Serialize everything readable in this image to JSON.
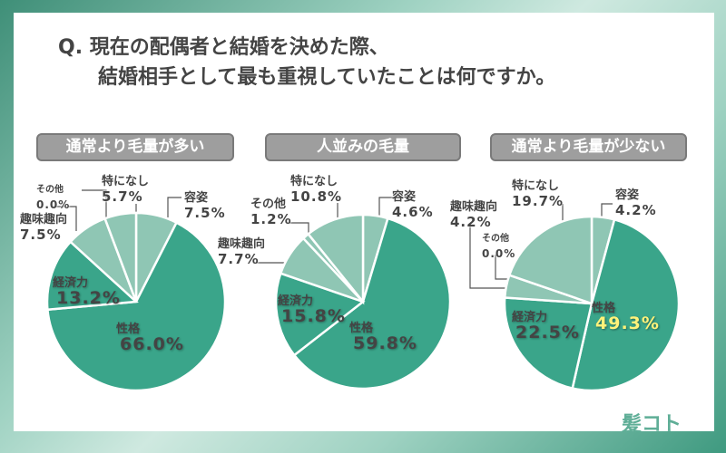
{
  "question": {
    "line1": "Q. 現在の配偶者と結婚を決めた際、",
    "line2": "結婚相手として最も重視していたことは何ですか。"
  },
  "logo": "髪コト",
  "colors": {
    "dark": "#3aa58a",
    "light": "#8fc6b4",
    "highlight": "#fff27a"
  },
  "chart_data": [
    {
      "type": "pie",
      "title": "通常より毛量が多い",
      "labels": [
        "容姿",
        "性格",
        "経済力",
        "趣味趣向",
        "その他",
        "特になし"
      ],
      "values": [
        7.5,
        66.0,
        13.2,
        7.5,
        0.0,
        5.7
      ],
      "display": [
        "7.5%",
        "66.0%",
        "13.2%",
        "7.5%",
        "0.0%",
        "5.7%"
      ]
    },
    {
      "type": "pie",
      "title": "人並みの毛量",
      "labels": [
        "容姿",
        "性格",
        "経済力",
        "趣味趣向",
        "その他",
        "特になし"
      ],
      "values": [
        4.6,
        59.8,
        15.8,
        7.7,
        1.2,
        10.8
      ],
      "display": [
        "4.6%",
        "59.8%",
        "15.8%",
        "7.7%",
        "1.2%",
        "10.8%"
      ]
    },
    {
      "type": "pie",
      "title": "通常より毛量が少ない",
      "labels": [
        "容姿",
        "性格",
        "経済力",
        "趣味趣向",
        "その他",
        "特になし"
      ],
      "values": [
        4.2,
        49.3,
        22.5,
        4.2,
        0.0,
        19.7
      ],
      "display": [
        "4.2%",
        "49.3%",
        "22.5%",
        "4.2%",
        "0.0%",
        "19.7%"
      ]
    }
  ]
}
